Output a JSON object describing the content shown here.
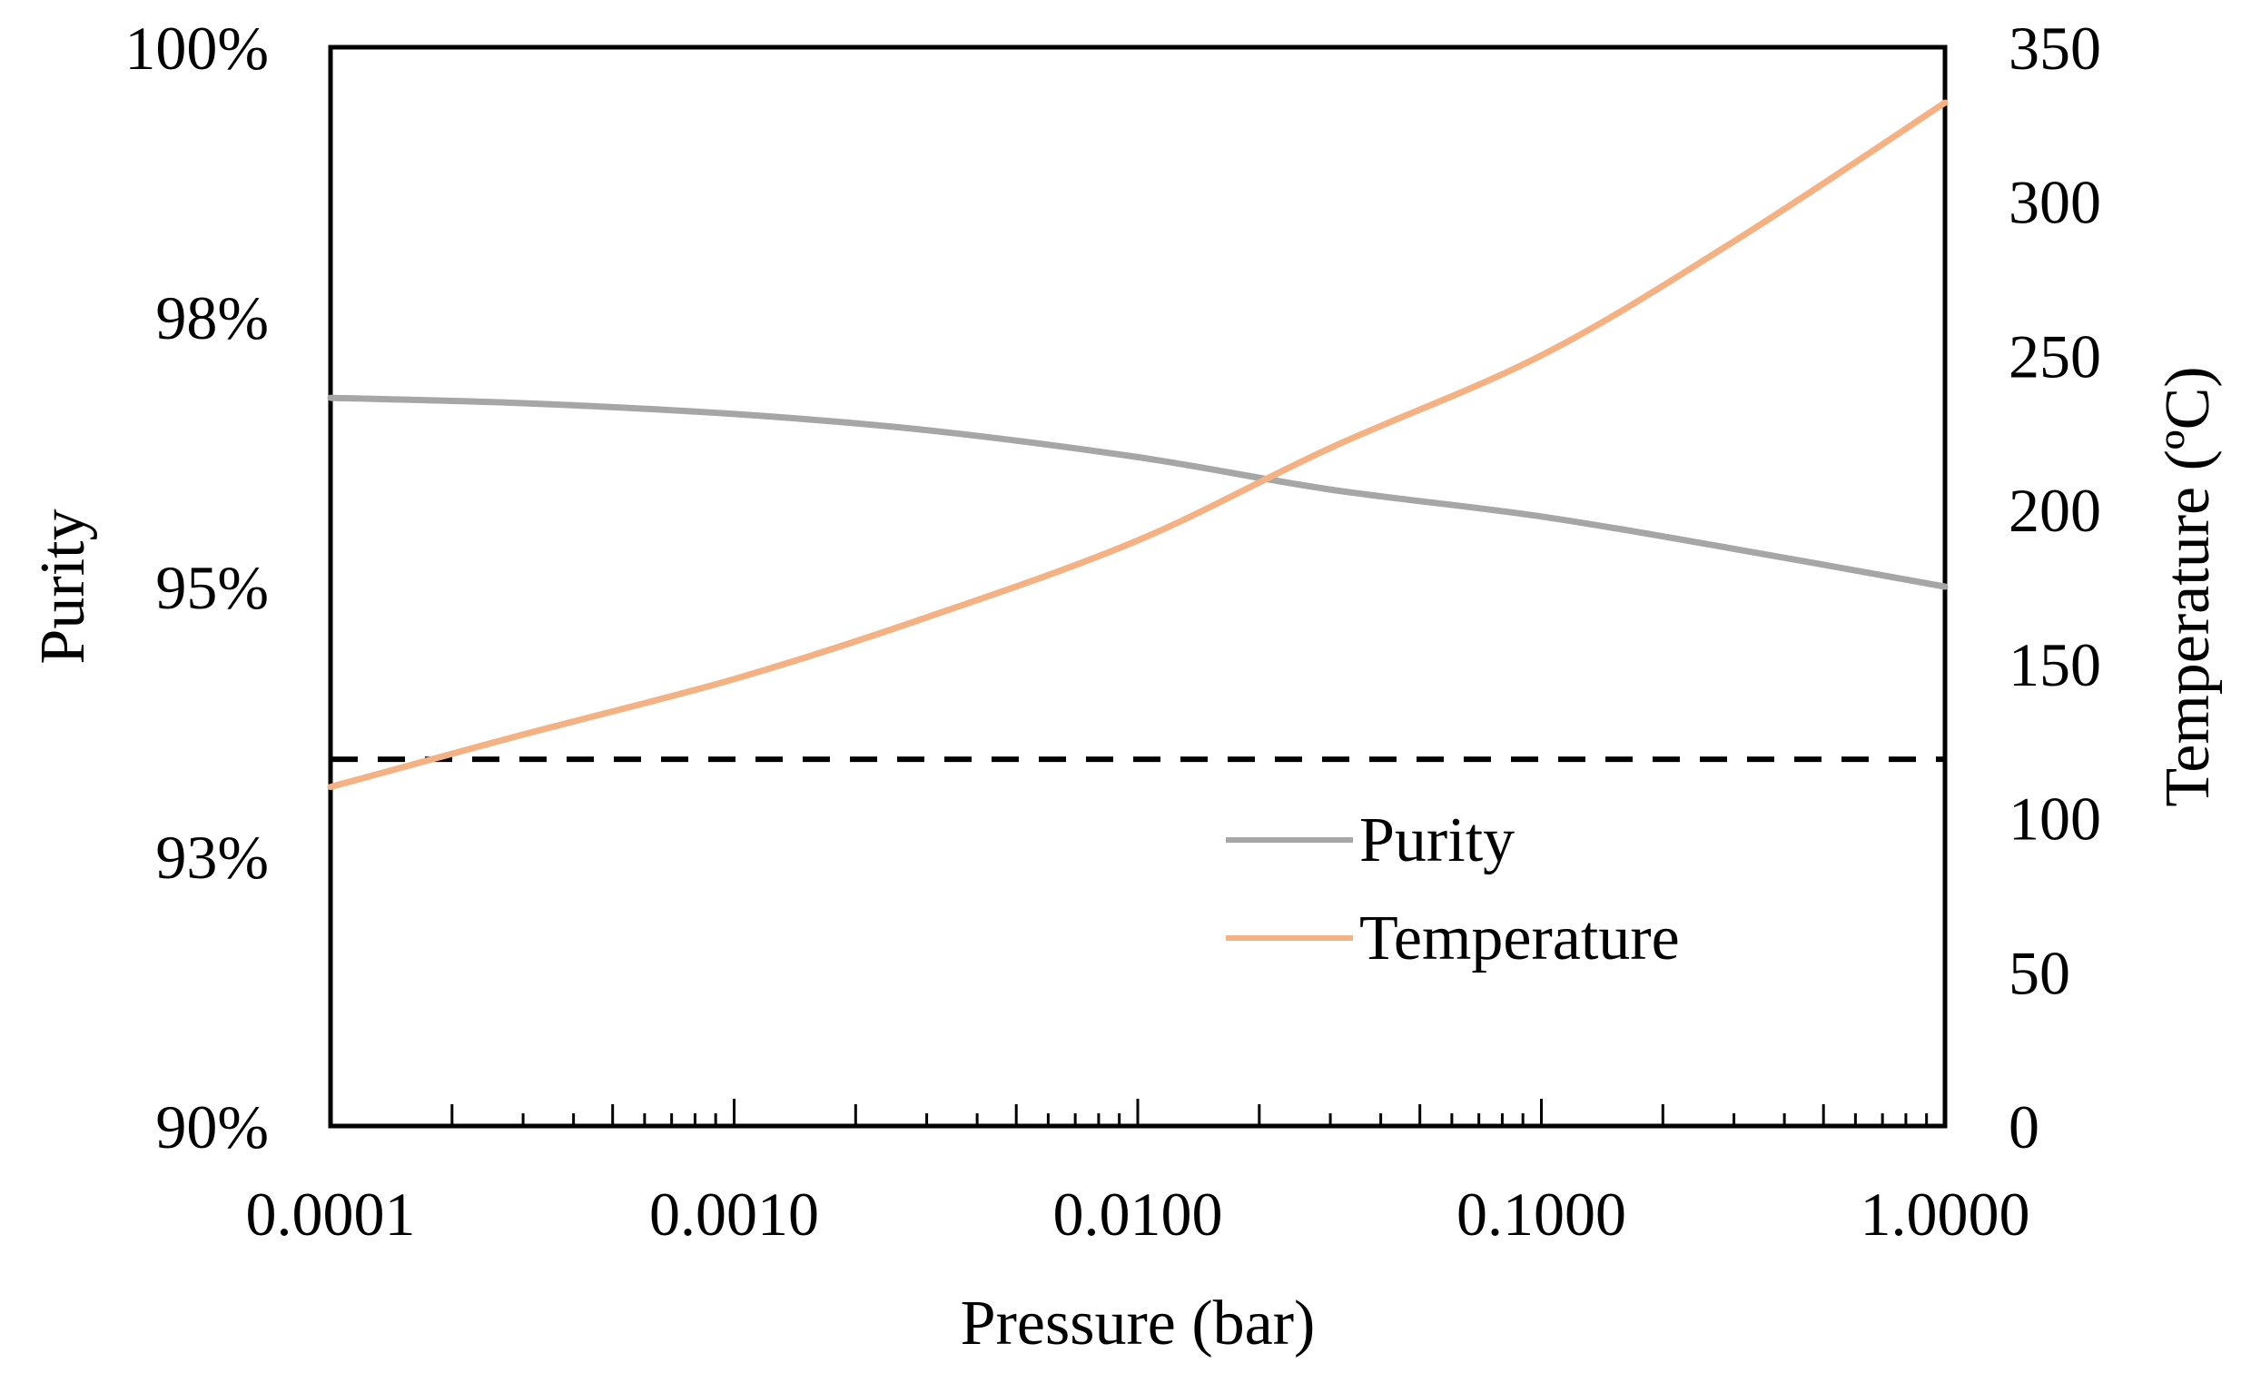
{
  "chart_data": {
    "type": "line",
    "title": "",
    "xlabel": "Pressure (bar)",
    "ylabel": "Purity",
    "y2label": "Temperature (ºC)",
    "xscale": "log",
    "xlim": [
      0.0001,
      1.0
    ],
    "ylim": [
      0.9,
      1.0
    ],
    "y2lim": [
      0,
      350
    ],
    "x_ticks": [
      {
        "value": 0.0001,
        "label": "0.0001"
      },
      {
        "value": 0.001,
        "label": "0.0010"
      },
      {
        "value": 0.01,
        "label": "0.0100"
      },
      {
        "value": 0.1,
        "label": "0.1000"
      },
      {
        "value": 1.0,
        "label": "1.0000"
      }
    ],
    "y_ticks": [
      {
        "value": 0.9,
        "label": "90%"
      },
      {
        "value": 0.925,
        "label": "93%"
      },
      {
        "value": 0.95,
        "label": "95%"
      },
      {
        "value": 0.975,
        "label": "98%"
      },
      {
        "value": 1.0,
        "label": "100%"
      }
    ],
    "y2_ticks": [
      {
        "value": 0,
        "label": "0"
      },
      {
        "value": 50,
        "label": "50"
      },
      {
        "value": 100,
        "label": "100"
      },
      {
        "value": 150,
        "label": "150"
      },
      {
        "value": 200,
        "label": "200"
      },
      {
        "value": 250,
        "label": "250"
      },
      {
        "value": 300,
        "label": "300"
      },
      {
        "value": 350,
        "label": "350"
      }
    ],
    "series": [
      {
        "name": "Purity",
        "axis": "left",
        "color": "#a6a6a6",
        "x": [
          0.0001,
          0.0003,
          0.001,
          0.003,
          0.01,
          0.03,
          0.1,
          0.3,
          1.0
        ],
        "y": [
          0.9675,
          0.967,
          0.966,
          0.9645,
          0.962,
          0.959,
          0.9565,
          0.9535,
          0.95
        ]
      },
      {
        "name": "Temperature",
        "axis": "right",
        "color": "#f4b183",
        "x": [
          0.0001,
          0.0003,
          0.001,
          0.003,
          0.01,
          0.03,
          0.1,
          0.3,
          1.0
        ],
        "y": [
          110,
          127,
          145,
          165,
          190,
          220,
          250,
          287,
          332
        ]
      }
    ],
    "reference_lines": [
      {
        "axis": "left",
        "y": 0.934,
        "style": "dashed",
        "color": "#000000"
      }
    ],
    "legend": {
      "position": "center-right",
      "entries": [
        {
          "label": "Purity",
          "color": "#a6a6a6"
        },
        {
          "label": "Temperature",
          "color": "#f4b183"
        }
      ]
    },
    "grid": false
  }
}
